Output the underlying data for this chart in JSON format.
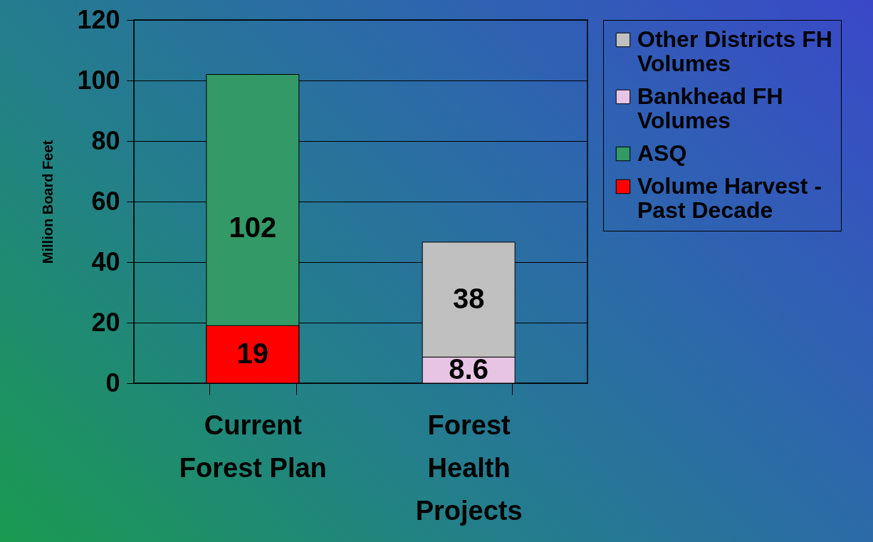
{
  "chart_data": {
    "type": "bar",
    "ylabel": "Million Board Feet",
    "categories": [
      "Current Forest Plan",
      "Forest Health Projects"
    ],
    "series": [
      {
        "name": "Other Districts FH Volumes",
        "color": "#c0c0c0",
        "values": [
          null,
          38
        ],
        "base": [
          null,
          8.6
        ]
      },
      {
        "name": "Bankhead FH Volumes",
        "color": "#e8c4e4",
        "values": [
          null,
          8.6
        ],
        "base": [
          null,
          0
        ]
      },
      {
        "name": "ASQ",
        "color": "#339966",
        "values": [
          102,
          null
        ],
        "base": [
          0,
          null
        ]
      },
      {
        "name": "Volume Harvest - Past Decade",
        "color": "#ff0000",
        "values": [
          19,
          null
        ],
        "base": [
          0,
          null
        ]
      }
    ],
    "ylim": [
      0,
      120
    ],
    "yticks": [
      0,
      20,
      40,
      60,
      80,
      100,
      120
    ],
    "grid": "y",
    "legend": "right",
    "data_labels": true
  }
}
